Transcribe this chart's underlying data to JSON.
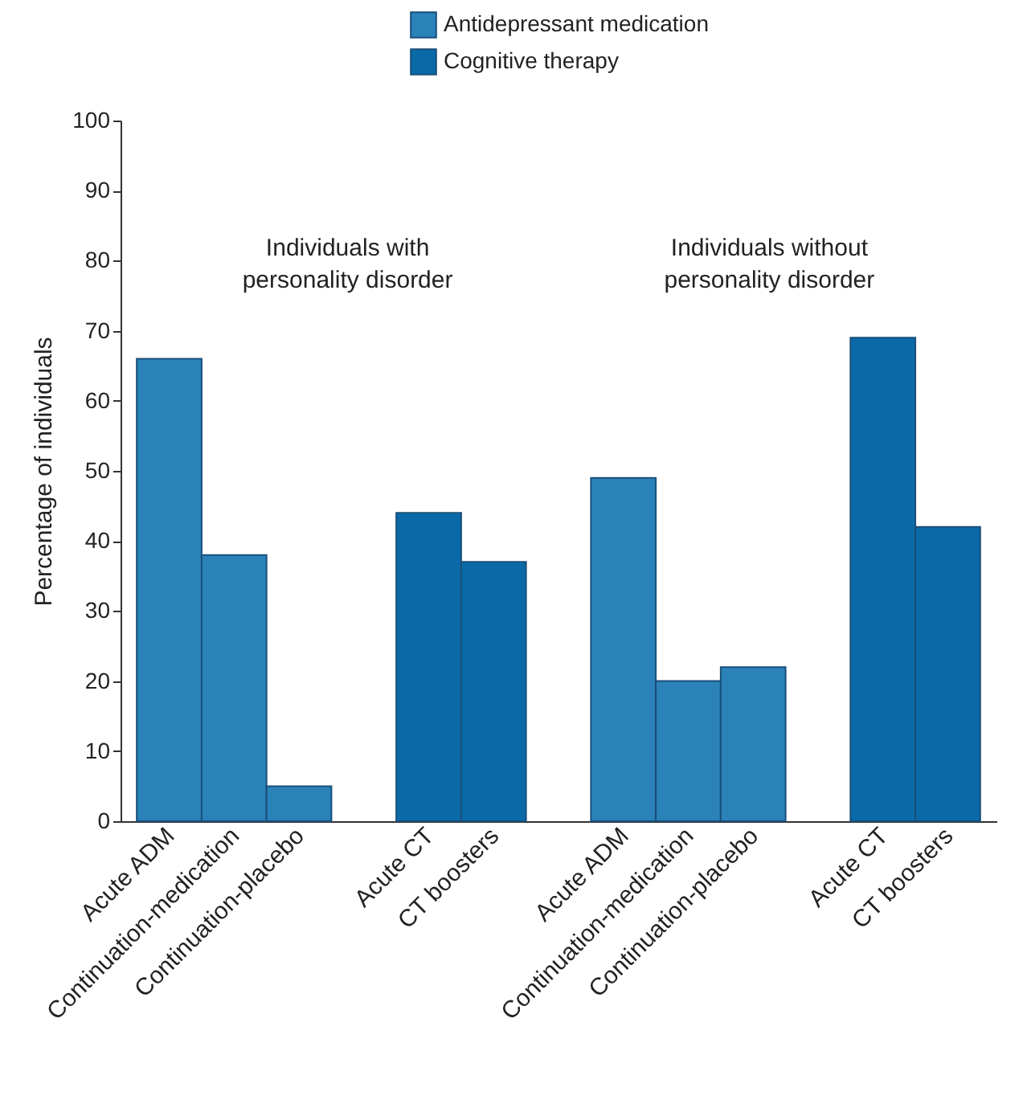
{
  "chart_data": {
    "type": "bar",
    "ylabel": "Percentage of individuals",
    "categories": [
      "Acute ADM",
      "Continuation-medication",
      "Continuation-placebo",
      null,
      "Acute CT",
      "CT boosters",
      null,
      "Acute ADM",
      "Continuation-medication",
      "Continuation-placebo",
      null,
      "Acute CT",
      "CT boosters"
    ],
    "series": [
      {
        "name": "Antidepressant medication",
        "color": "#2a82b8",
        "values": [
          66,
          38,
          5,
          null,
          null,
          null,
          null,
          49,
          20,
          22,
          null,
          null,
          null
        ]
      },
      {
        "name": "Cognitive therapy",
        "color": "#0a6aa8",
        "values": [
          null,
          null,
          null,
          null,
          44,
          37,
          null,
          null,
          null,
          null,
          null,
          69,
          42
        ]
      }
    ],
    "ylim": [
      0,
      100
    ],
    "yticks": [
      0,
      10,
      20,
      30,
      40,
      50,
      60,
      70,
      80,
      90,
      100
    ],
    "grid": false,
    "legend": "top",
    "annotations": [
      "Individuals with personality disorder",
      "Individuals without personality disorder"
    ]
  }
}
